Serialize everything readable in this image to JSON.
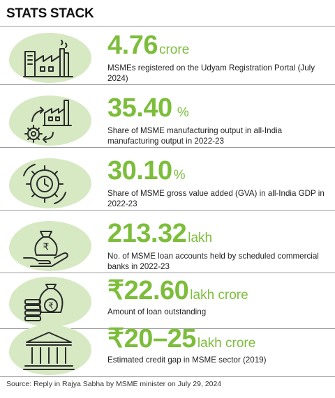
{
  "header": {
    "title": "STATS STACK"
  },
  "stats": [
    {
      "value": "4.76",
      "unit": "crore",
      "description": "MSMEs registered on the Udyam Registration Portal (July 2024)",
      "icon": "factory-icon"
    },
    {
      "value": "35.40",
      "unit": " %",
      "description": "Share of MSME manufacturing output in all-India manufacturing output in 2022-23",
      "icon": "factory-gear-icon"
    },
    {
      "value": "30.10",
      "unit": "%",
      "description": "Share of MSME gross value added (GVA) in all-India GDP in 2022-23",
      "icon": "gear-clock-icon"
    },
    {
      "value": "213.32",
      "unit": "lakh",
      "description": "No. of MSME loan accounts held  by scheduled commercial banks in 2022-23",
      "icon": "money-bag-hand-icon"
    },
    {
      "value": "₹22.60",
      "unit": "lakh crore",
      "description": "Amount of loan outstanding",
      "icon": "money-bag-coins-icon"
    },
    {
      "value": "₹20–25",
      "unit": "lakh crore",
      "description": "Estimated credit gap in MSME sector (2019)",
      "icon": "bank-icon"
    }
  ],
  "colors": {
    "accent": "#7cbd3a",
    "blob": "#d6e9c3",
    "rule": "#9a9a9a"
  },
  "source": "Source: Reply in Rajya Sabha by MSME minister on July 29, 2024"
}
